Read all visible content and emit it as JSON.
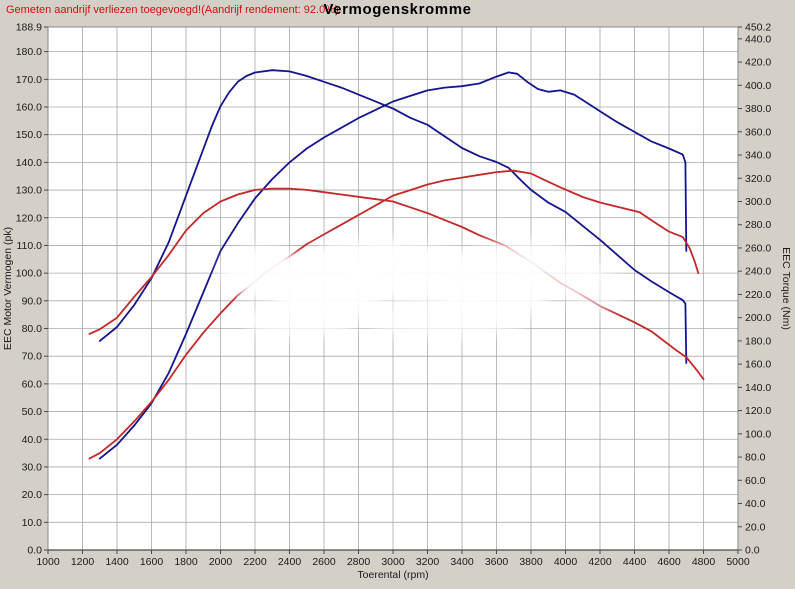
{
  "header": {
    "annotation": "Gemeten aandrijf verliezen toegevoegd!(Aandrijf rendement: 92.0%)",
    "title": "Vermogenskromme"
  },
  "colors": {
    "background": "#d4d0c8",
    "plot_background": "#ffffff",
    "grid": "#a8a8a8",
    "axis_line": "#4a4a4a",
    "text": "#1a1a1a",
    "annotation": "#cc1111",
    "blue_series": "#14148c",
    "red_series": "#c22828",
    "watermark": "#ffffff"
  },
  "watermark": {
    "present": true,
    "legible": false
  },
  "chart_data": {
    "type": "line",
    "title": "Vermogenskromme",
    "xlabel": "Toerental (rpm)",
    "ylabel_left": "EEC Motor Vermogen (pk)",
    "ylabel_right": "EEC Torque (Nm)",
    "x_range": [
      1000,
      5000
    ],
    "y_left_range": [
      0,
      188.9
    ],
    "y_right_range": [
      0,
      450.2
    ],
    "grid": true,
    "legend": "none",
    "x_ticks": [
      "1000",
      "1200",
      "1400",
      "1600",
      "1800",
      "2000",
      "2200",
      "2400",
      "2600",
      "2800",
      "3000",
      "3200",
      "3400",
      "3600",
      "3800",
      "4000",
      "4200",
      "4400",
      "4600",
      "4800",
      "5000"
    ],
    "y_left_ticks": [
      "0.0",
      "10.0",
      "20.0",
      "30.0",
      "40.0",
      "50.0",
      "60.0",
      "70.0",
      "80.0",
      "90.0",
      "100.0",
      "110.0",
      "120.0",
      "130.0",
      "140.0",
      "150.0",
      "160.0",
      "170.0",
      "180.0",
      "188.9"
    ],
    "y_right_ticks": [
      "0.0",
      "20.0",
      "40.0",
      "60.0",
      "80.0",
      "100.0",
      "120.0",
      "140.0",
      "160.0",
      "180.0",
      "200.0",
      "220.0",
      "240.0",
      "260.0",
      "280.0",
      "300.0",
      "320.0",
      "340.0",
      "360.0",
      "380.0",
      "400.0",
      "420.0",
      "440.0",
      "450.2"
    ],
    "series": [
      {
        "name": "blue-power-pk",
        "axis": "left",
        "color": "#14148c",
        "points": [
          [
            1300,
            33
          ],
          [
            1400,
            38
          ],
          [
            1500,
            45
          ],
          [
            1600,
            53
          ],
          [
            1700,
            64
          ],
          [
            1800,
            78
          ],
          [
            1900,
            93
          ],
          [
            2000,
            108
          ],
          [
            2100,
            118
          ],
          [
            2200,
            127
          ],
          [
            2300,
            134
          ],
          [
            2400,
            140
          ],
          [
            2500,
            145
          ],
          [
            2600,
            149
          ],
          [
            2700,
            152.5
          ],
          [
            2800,
            156
          ],
          [
            2900,
            159
          ],
          [
            3000,
            162
          ],
          [
            3100,
            164
          ],
          [
            3200,
            166
          ],
          [
            3300,
            167
          ],
          [
            3400,
            167.5
          ],
          [
            3500,
            168.5
          ],
          [
            3600,
            171
          ],
          [
            3670,
            172.5
          ],
          [
            3720,
            172
          ],
          [
            3780,
            169
          ],
          [
            3840,
            166.5
          ],
          [
            3900,
            165.5
          ],
          [
            3970,
            166
          ],
          [
            4050,
            164.5
          ],
          [
            4100,
            162.5
          ],
          [
            4200,
            158.5
          ],
          [
            4300,
            154.5
          ],
          [
            4400,
            151
          ],
          [
            4500,
            147.5
          ],
          [
            4600,
            145
          ],
          [
            4680,
            142.8
          ],
          [
            4695,
            140
          ],
          [
            4700,
            108
          ]
        ]
      },
      {
        "name": "blue-torque-nm",
        "axis": "right",
        "color": "#14148c",
        "points": [
          [
            1300,
            180
          ],
          [
            1400,
            192
          ],
          [
            1500,
            211
          ],
          [
            1600,
            234
          ],
          [
            1700,
            265
          ],
          [
            1800,
            305
          ],
          [
            1900,
            345
          ],
          [
            1950,
            365
          ],
          [
            2000,
            382
          ],
          [
            2050,
            394
          ],
          [
            2100,
            403
          ],
          [
            2150,
            408
          ],
          [
            2200,
            411
          ],
          [
            2300,
            413
          ],
          [
            2400,
            412
          ],
          [
            2500,
            408
          ],
          [
            2600,
            403
          ],
          [
            2700,
            398
          ],
          [
            2800,
            392
          ],
          [
            2900,
            386
          ],
          [
            3000,
            380
          ],
          [
            3100,
            372
          ],
          [
            3200,
            366
          ],
          [
            3300,
            356
          ],
          [
            3400,
            346
          ],
          [
            3500,
            339
          ],
          [
            3600,
            334
          ],
          [
            3670,
            329
          ],
          [
            3750,
            317
          ],
          [
            3800,
            310
          ],
          [
            3900,
            299
          ],
          [
            4000,
            291
          ],
          [
            4100,
            279
          ],
          [
            4200,
            267
          ],
          [
            4300,
            254
          ],
          [
            4400,
            241
          ],
          [
            4500,
            231
          ],
          [
            4600,
            222
          ],
          [
            4680,
            215
          ],
          [
            4695,
            212
          ],
          [
            4700,
            161
          ]
        ]
      },
      {
        "name": "red-power-pk",
        "axis": "left",
        "color": "#c22828",
        "points": [
          [
            1240,
            33
          ],
          [
            1300,
            35
          ],
          [
            1400,
            40
          ],
          [
            1500,
            46.5
          ],
          [
            1600,
            53.5
          ],
          [
            1700,
            61.5
          ],
          [
            1800,
            70.5
          ],
          [
            1900,
            78.5
          ],
          [
            2000,
            85.5
          ],
          [
            2100,
            92
          ],
          [
            2200,
            97
          ],
          [
            2300,
            102
          ],
          [
            2400,
            106
          ],
          [
            2500,
            110.5
          ],
          [
            2600,
            114
          ],
          [
            2700,
            117.5
          ],
          [
            2800,
            121
          ],
          [
            2900,
            124.5
          ],
          [
            3000,
            128
          ],
          [
            3100,
            130
          ],
          [
            3200,
            132
          ],
          [
            3300,
            133.5
          ],
          [
            3400,
            134.5
          ],
          [
            3500,
            135.5
          ],
          [
            3600,
            136.5
          ],
          [
            3700,
            137
          ],
          [
            3800,
            136
          ],
          [
            3900,
            133
          ],
          [
            3970,
            131
          ],
          [
            4100,
            127.5
          ],
          [
            4200,
            125.5
          ],
          [
            4300,
            124
          ],
          [
            4430,
            122
          ],
          [
            4500,
            119
          ],
          [
            4600,
            115
          ],
          [
            4680,
            113
          ],
          [
            4720,
            109
          ],
          [
            4750,
            104
          ],
          [
            4770,
            100
          ]
        ]
      },
      {
        "name": "red-torque-nm",
        "axis": "right",
        "color": "#c22828",
        "points": [
          [
            1240,
            186
          ],
          [
            1300,
            190
          ],
          [
            1400,
            200
          ],
          [
            1500,
            218
          ],
          [
            1600,
            235
          ],
          [
            1700,
            254
          ],
          [
            1800,
            275
          ],
          [
            1900,
            290
          ],
          [
            2000,
            300
          ],
          [
            2100,
            306
          ],
          [
            2200,
            310
          ],
          [
            2300,
            311
          ],
          [
            2400,
            311
          ],
          [
            2500,
            310
          ],
          [
            2600,
            308
          ],
          [
            2700,
            306
          ],
          [
            2800,
            304
          ],
          [
            2900,
            302
          ],
          [
            3000,
            300
          ],
          [
            3100,
            295
          ],
          [
            3200,
            290
          ],
          [
            3300,
            284
          ],
          [
            3400,
            278
          ],
          [
            3500,
            271
          ],
          [
            3650,
            262
          ],
          [
            3800,
            248
          ],
          [
            3970,
            230
          ],
          [
            4100,
            219
          ],
          [
            4200,
            210
          ],
          [
            4300,
            203
          ],
          [
            4400,
            196
          ],
          [
            4500,
            188
          ],
          [
            4650,
            171
          ],
          [
            4700,
            166
          ],
          [
            4760,
            155
          ],
          [
            4800,
            147
          ]
        ]
      }
    ]
  }
}
